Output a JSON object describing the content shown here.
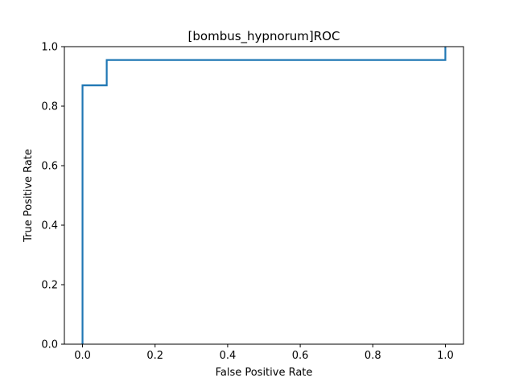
{
  "chart_data": {
    "type": "line",
    "title": "[bombus_hypnorum]ROC",
    "xlabel": "False Positive Rate",
    "ylabel": "True Positive Rate",
    "xlim": [
      -0.05,
      1.05
    ],
    "ylim": [
      0.0,
      1.0
    ],
    "xticks": [
      "0.0",
      "0.2",
      "0.4",
      "0.6",
      "0.8",
      "1.0"
    ],
    "yticks": [
      "0.0",
      "0.2",
      "0.4",
      "0.6",
      "0.8",
      "1.0"
    ],
    "grid": false,
    "series": [
      {
        "color": "#1f77b4",
        "x": [
          0.0,
          0.0,
          0.0667,
          0.0667,
          1.0,
          1.0
        ],
        "y": [
          0.0,
          0.87,
          0.87,
          0.955,
          0.955,
          1.0
        ]
      }
    ]
  }
}
